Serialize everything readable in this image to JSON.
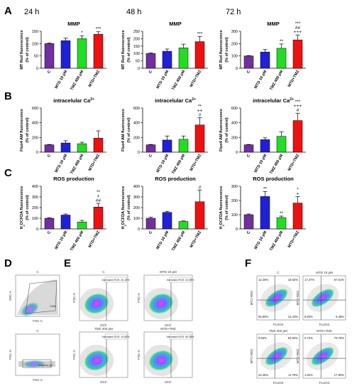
{
  "figure": {
    "panel_labels": [
      "A",
      "B",
      "C",
      "D",
      "E",
      "F"
    ],
    "time_headers": [
      "24 h",
      "48 h",
      "72 h"
    ],
    "bar_colors": [
      "#7030a0",
      "#2020d8",
      "#22dd22",
      "#ee1111"
    ]
  },
  "chart_data": [
    {
      "type": "bar",
      "row": "A",
      "col": 0,
      "title": "MMP",
      "ylabel": "MT Red fluorescence\n(% of control)",
      "ylim": [
        0,
        150
      ],
      "yticks": [
        0,
        50,
        100,
        150
      ],
      "categories": [
        "C",
        "MTD 10 μM",
        "TMZ 400 μM",
        "MTD+TMZ"
      ],
      "values": [
        100,
        112,
        120,
        138
      ],
      "errors": [
        3,
        10,
        12,
        10
      ],
      "annotations": [
        "",
        "",
        "*",
        "***"
      ]
    },
    {
      "type": "bar",
      "row": "A",
      "col": 1,
      "title": "MMP",
      "ylabel": "MT Red fluorescence\n(% of control)",
      "ylim": [
        0,
        250
      ],
      "yticks": [
        0,
        50,
        100,
        150,
        200,
        250
      ],
      "categories": [
        "C",
        "MTD 10 μM",
        "TMZ 400 μM",
        "MTD+TMZ"
      ],
      "values": [
        100,
        115,
        138,
        180
      ],
      "errors": [
        5,
        15,
        25,
        35
      ],
      "annotations": [
        "",
        "",
        "",
        "***"
      ]
    },
    {
      "type": "bar",
      "row": "A",
      "col": 2,
      "title": "MMP",
      "ylabel": "MT Red fluorescence\n(% of control)",
      "ylim": [
        0,
        300
      ],
      "yticks": [
        0,
        100,
        200,
        300
      ],
      "categories": [
        "C",
        "MTD 10 μM",
        "TMZ 400 μM",
        "MTD+TMZ"
      ],
      "values": [
        100,
        132,
        162,
        230
      ],
      "errors": [
        3,
        20,
        35,
        40
      ],
      "annotations": [
        "",
        "",
        "**",
        "***\n##\n+++"
      ]
    },
    {
      "type": "bar",
      "row": "B",
      "col": 0,
      "title": "intracelular Ca2+",
      "ylabel": "Fluo4 AM fluorescence\n(% of control)",
      "ylim": [
        0,
        600
      ],
      "yticks": [
        0,
        200,
        400,
        600
      ],
      "categories": [
        "C",
        "MTD 10 μM",
        "TMZ 400 μM",
        "MTD+TMZ"
      ],
      "values": [
        100,
        125,
        115,
        190
      ],
      "errors": [
        5,
        30,
        20,
        100
      ],
      "annotations": [
        "",
        "",
        "",
        ""
      ]
    },
    {
      "type": "bar",
      "row": "B",
      "col": 1,
      "title": "intracelular Ca2+",
      "ylabel": "Fluo4 AM fluorescence\n(% of control)",
      "ylim": [
        0,
        600
      ],
      "yticks": [
        0,
        200,
        400,
        600
      ],
      "categories": [
        "C",
        "MTD 10 μM",
        "TMZ 400 μM",
        "MTD+TMZ"
      ],
      "values": [
        100,
        165,
        175,
        370
      ],
      "errors": [
        5,
        55,
        45,
        100
      ],
      "annotations": [
        "",
        "",
        "",
        "**\n++\n#"
      ]
    },
    {
      "type": "bar",
      "row": "B",
      "col": 2,
      "title": "intracelular Ca2+",
      "ylabel": "Fluo4 AM fluorescence\n(% of control)",
      "ylim": [
        0,
        600
      ],
      "yticks": [
        0,
        200,
        400,
        600
      ],
      "categories": [
        "C",
        "MTD 10 μM",
        "TMZ 400 μM",
        "MTD+TMZ"
      ],
      "values": [
        100,
        170,
        215,
        430
      ],
      "errors": [
        5,
        25,
        60,
        100
      ],
      "annotations": [
        "",
        "",
        "",
        "***\n+++\n#"
      ]
    },
    {
      "type": "bar",
      "row": "C",
      "col": 0,
      "title": "ROS production",
      "ylabel": "H2DCFDA fluorescence\n(% of control)",
      "ylim": [
        0,
        400
      ],
      "yticks": [
        0,
        100,
        200,
        300,
        400
      ],
      "categories": [
        "C",
        "MTD 10 μM",
        "TMZ 400 μM",
        "MTD+TMZ"
      ],
      "values": [
        100,
        130,
        65,
        205
      ],
      "errors": [
        5,
        10,
        15,
        35
      ],
      "annotations": [
        "",
        "",
        "",
        "**\n+\n##"
      ]
    },
    {
      "type": "bar",
      "row": "C",
      "col": 1,
      "title": "ROS production",
      "ylabel": "H2DCFDA fluorescence\n(% of control)",
      "ylim": [
        0,
        400
      ],
      "yticks": [
        0,
        100,
        200,
        300,
        400
      ],
      "categories": [
        "C",
        "MTD 10 μM",
        "TMZ 400 μM",
        "MTD+TMZ"
      ],
      "values": [
        100,
        155,
        70,
        255
      ],
      "errors": [
        10,
        10,
        5,
        110
      ],
      "annotations": [
        "",
        "",
        "",
        "#"
      ]
    },
    {
      "type": "bar",
      "row": "C",
      "col": 2,
      "title": "ROS production",
      "ylabel": "H2DCFDA fluorescence\n(% of control)",
      "ylim": [
        0,
        300
      ],
      "yticks": [
        0,
        100,
        200,
        300
      ],
      "categories": [
        "C",
        "MTD 10 μM",
        "TMZ 400 μM",
        "MTD+TMZ"
      ],
      "values": [
        100,
        228,
        80,
        182
      ],
      "errors": [
        5,
        35,
        10,
        45
      ],
      "annotations": [
        "",
        "**",
        "**",
        "*\n+"
      ]
    }
  ],
  "flow": {
    "D": [
      {
        "title": "C",
        "ylabel": "SSC-A",
        "xlabel": "FSC-A",
        "gate": "Cells"
      },
      {
        "title": "C",
        "ylabel": "FSC-H",
        "xlabel": "FSC-A",
        "gate": "singlets (1)"
      }
    ],
    "E": [
      {
        "title": "C",
        "ylabel": "FSC-A",
        "xlabel": "DCF",
        "label": "Increased ROS: 26.13%"
      },
      {
        "title": "MTD 10 μM",
        "ylabel": "FSC-A",
        "xlabel": "DCF",
        "label": "Increased ROS: 33.39%"
      },
      {
        "title": "TMZ 400 μM",
        "ylabel": "FSC-A",
        "xlabel": "DCF",
        "label": "Increased ROS: 19.64%"
      },
      {
        "title": "MTD+TMZ",
        "ylabel": "FSC-A",
        "xlabel": "DCF",
        "label": "Increased ROS: 55.36%"
      }
    ],
    "F": [
      {
        "title": "C",
        "ylabel": "MTO RED",
        "xlabel": "FLUO4",
        "q": [
          "12.26%",
          "18.82%",
          "55.50%",
          "13.43%"
        ]
      },
      {
        "title": "MTD 10 μM",
        "ylabel": "MTO RED",
        "xlabel": "FLUO4",
        "q": [
          "17.27%",
          "67.51%",
          "8.83%",
          "6.39%"
        ]
      },
      {
        "title": "TMZ 400 μM",
        "ylabel": "MTO RED",
        "xlabel": "FLUO4",
        "q": [
          "9.83%",
          "53.92%",
          "24.46%",
          "11.79%"
        ]
      },
      {
        "title": "MTD+TMZ",
        "ylabel": "MTO RED",
        "xlabel": "FLUO4",
        "q": [
          "0.72%",
          "79.76%",
          "1.62%",
          "17.90%"
        ]
      }
    ]
  }
}
